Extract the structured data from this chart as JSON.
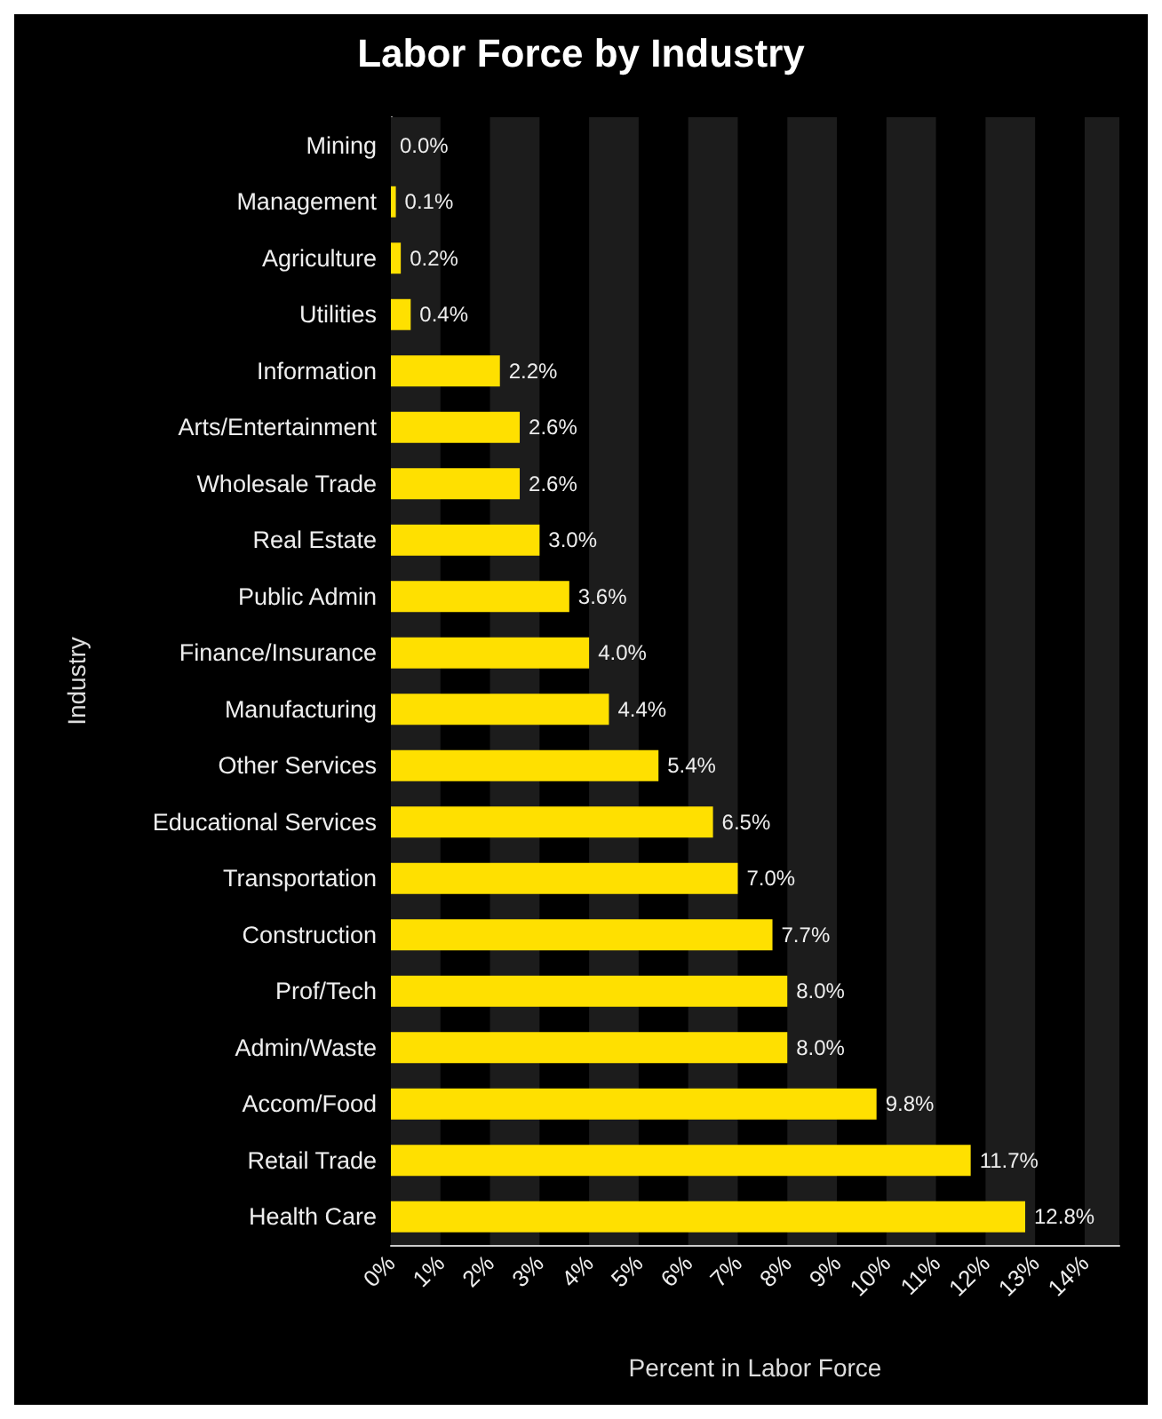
{
  "chart_data": {
    "type": "bar",
    "orientation": "horizontal",
    "title": "Labor Force by Industry",
    "xlabel": "Percent in Labor Force",
    "ylabel": "Industry",
    "categories": [
      "Mining",
      "Management",
      "Agriculture",
      "Utilities",
      "Information",
      "Arts/Entertainment",
      "Wholesale Trade",
      "Real Estate",
      "Public Admin",
      "Finance/Insurance",
      "Manufacturing",
      "Other Services",
      "Educational Services",
      "Transportation",
      "Construction",
      "Prof/Tech",
      "Admin/Waste",
      "Accom/Food",
      "Retail Trade",
      "Health Care"
    ],
    "values": [
      0.0,
      0.1,
      0.2,
      0.4,
      2.2,
      2.6,
      2.6,
      3.0,
      3.6,
      4.0,
      4.4,
      5.4,
      6.5,
      7.0,
      7.7,
      8.0,
      8.0,
      9.8,
      11.7,
      12.8
    ],
    "value_labels": [
      "0.0%",
      "0.1%",
      "0.2%",
      "0.4%",
      "2.2%",
      "2.6%",
      "2.6%",
      "3.0%",
      "3.6%",
      "4.0%",
      "4.4%",
      "5.4%",
      "6.5%",
      "7.0%",
      "7.7%",
      "8.0%",
      "8.0%",
      "9.8%",
      "11.7%",
      "12.8%"
    ],
    "color": "#ffe000",
    "xlim": [
      0,
      14.7
    ],
    "xticks": [
      {
        "value": 0,
        "label": "0%"
      },
      {
        "value": 1,
        "label": "1%"
      },
      {
        "value": 2,
        "label": "2%"
      },
      {
        "value": 3,
        "label": "3%"
      },
      {
        "value": 4,
        "label": "4%"
      },
      {
        "value": 5,
        "label": "5%"
      },
      {
        "value": 6,
        "label": "6%"
      },
      {
        "value": 7,
        "label": "7%"
      },
      {
        "value": 8,
        "label": "8%"
      },
      {
        "value": 9,
        "label": "9%"
      },
      {
        "value": 10,
        "label": "10%"
      },
      {
        "value": 11,
        "label": "11%"
      },
      {
        "value": 12,
        "label": "12%"
      },
      {
        "value": 13,
        "label": "13%"
      },
      {
        "value": 14,
        "label": "14%"
      }
    ],
    "bands": [
      {
        "axis": "x",
        "from": 0,
        "to": 1,
        "color": "#1c1c1c"
      },
      {
        "axis": "x",
        "from": 2,
        "to": 3,
        "color": "#1c1c1c"
      },
      {
        "axis": "x",
        "from": 4,
        "to": 5,
        "color": "#1c1c1c"
      },
      {
        "axis": "x",
        "from": 6,
        "to": 7,
        "color": "#1c1c1c"
      },
      {
        "axis": "x",
        "from": 8,
        "to": 9,
        "color": "#1c1c1c"
      },
      {
        "axis": "x",
        "from": 10,
        "to": 11,
        "color": "#1c1c1c"
      },
      {
        "axis": "x",
        "from": 12,
        "to": 13,
        "color": "#1c1c1c"
      },
      {
        "axis": "x",
        "from": 14,
        "to": 14.7,
        "color": "#1c1c1c"
      }
    ]
  }
}
